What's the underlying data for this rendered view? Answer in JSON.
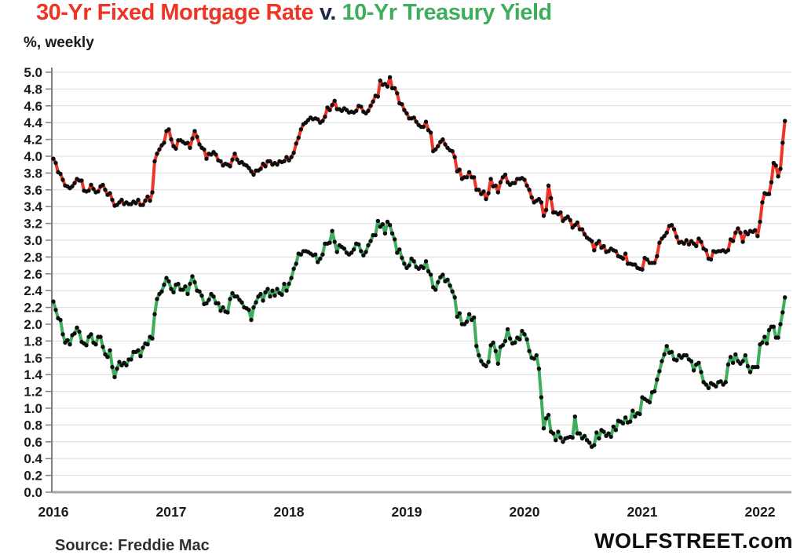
{
  "title": {
    "part_red": "30-Yr Fixed Mortgage Rate",
    "sep": " v. ",
    "part_green": "10-Yr Treasury Yield"
  },
  "subtitle": "%, weekly",
  "footer": {
    "source": "Source: Freddie Mac",
    "brand": "WOLFSTREET.com"
  },
  "colors": {
    "mortgage_red": "#EE3425",
    "treasury_green": "#3EAE5C",
    "title_sep": "#1b2a4a",
    "dot": "#0d0d0d",
    "grid": "#dcdcdc",
    "axis": "#8c8c8c",
    "baseline": "#a6a6a6",
    "label_text": "#1a1a1a"
  },
  "chart_data": {
    "type": "line",
    "title": "30-Yr Fixed Mortgage Rate v. 10-Yr Treasury Yield",
    "ylabel": "%, weekly",
    "xlabel": "",
    "ylim": [
      0.0,
      5.0
    ],
    "ytick_step": 0.2,
    "x_ticks": [
      2016,
      2017,
      2018,
      2019,
      2020,
      2021,
      2022
    ],
    "grid": true,
    "legend_position": "none",
    "marker": "dot",
    "partial_year_divisor": 52,
    "series": [
      {
        "name": "30-Yr Fixed Mortgage Rate",
        "color": "#EE3425",
        "data_by_year": {
          "2016": [
            3.97,
            3.92,
            3.81,
            3.79,
            3.72,
            3.65,
            3.64,
            3.62,
            3.64,
            3.68,
            3.73,
            3.71,
            3.71,
            3.59,
            3.58,
            3.59,
            3.66,
            3.61,
            3.57,
            3.58,
            3.64,
            3.66,
            3.6,
            3.54,
            3.56,
            3.48,
            3.41,
            3.42,
            3.45,
            3.48,
            3.43,
            3.45,
            3.43,
            3.43,
            3.46,
            3.44,
            3.48,
            3.42,
            3.42,
            3.47,
            3.52,
            3.47,
            3.57,
            3.94,
            4.03,
            4.08,
            4.13,
            4.16,
            4.3,
            4.32
          ],
          "2017": [
            4.2,
            4.12,
            4.09,
            4.19,
            4.19,
            4.17,
            4.15,
            4.16,
            4.1,
            4.21,
            4.3,
            4.23,
            4.14,
            4.1,
            4.08,
            3.97,
            4.03,
            4.02,
            4.05,
            4.02,
            3.95,
            3.94,
            3.89,
            3.91,
            3.9,
            3.88,
            3.96,
            4.03,
            3.96,
            3.92,
            3.93,
            3.9,
            3.89,
            3.86,
            3.82,
            3.78,
            3.83,
            3.83,
            3.85,
            3.91,
            3.88,
            3.94,
            3.94,
            3.9,
            3.92,
            3.9,
            3.94,
            3.93,
            3.94,
            3.99
          ],
          "2018": [
            3.95,
            3.99,
            4.04,
            4.15,
            4.22,
            4.32,
            4.38,
            4.4,
            4.43,
            4.46,
            4.44,
            4.45,
            4.44,
            4.4,
            4.42,
            4.47,
            4.58,
            4.55,
            4.61,
            4.66,
            4.56,
            4.56,
            4.54,
            4.57,
            4.55,
            4.52,
            4.53,
            4.52,
            4.54,
            4.6,
            4.59,
            4.53,
            4.51,
            4.54,
            4.6,
            4.65,
            4.72,
            4.71,
            4.9,
            4.85,
            4.86,
            4.83,
            4.94,
            4.81,
            4.81,
            4.75,
            4.63,
            4.62,
            4.55
          ],
          "2019": [
            4.51,
            4.45,
            4.45,
            4.46,
            4.41,
            4.37,
            4.35,
            4.35,
            4.41,
            4.31,
            4.28,
            4.06,
            4.08,
            4.12,
            4.17,
            4.2,
            4.14,
            4.1,
            4.07,
            4.06,
            3.99,
            3.82,
            3.84,
            3.73,
            3.75,
            3.75,
            3.81,
            3.75,
            3.75,
            3.6,
            3.6,
            3.55,
            3.58,
            3.49,
            3.56,
            3.73,
            3.64,
            3.65,
            3.57,
            3.69,
            3.75,
            3.78,
            3.69,
            3.66,
            3.68,
            3.68,
            3.73,
            3.73,
            3.74
          ],
          "2020": [
            3.72,
            3.65,
            3.6,
            3.51,
            3.45,
            3.47,
            3.49,
            3.45,
            3.29,
            3.36,
            3.65,
            3.5,
            3.33,
            3.33,
            3.31,
            3.33,
            3.23,
            3.26,
            3.28,
            3.24,
            3.15,
            3.18,
            3.21,
            3.13,
            3.13,
            3.07,
            3.03,
            3.01,
            2.99,
            2.88,
            2.96,
            2.99,
            2.91,
            2.93,
            2.86,
            2.87,
            2.9,
            2.88,
            2.87,
            2.81,
            2.8,
            2.78,
            2.84,
            2.72,
            2.72,
            2.71,
            2.71,
            2.67,
            2.66
          ],
          "2021": [
            2.65,
            2.79,
            2.77,
            2.73,
            2.73,
            2.73,
            2.81,
            2.97,
            3.02,
            3.05,
            3.09,
            3.17,
            3.18,
            3.13,
            3.04,
            2.97,
            2.98,
            2.96,
            3.0,
            2.95,
            2.99,
            2.96,
            2.93,
            3.02,
            2.98,
            2.9,
            2.88,
            2.78,
            2.77,
            2.87,
            2.86,
            2.87,
            2.87,
            2.88,
            2.86,
            2.88,
            3.01,
            2.99,
            3.09,
            3.14,
            3.09,
            2.98,
            3.1,
            3.07,
            3.11,
            3.1,
            3.12,
            3.05
          ],
          "2022": [
            3.22,
            3.45,
            3.56,
            3.55,
            3.55,
            3.69,
            3.92,
            3.89,
            3.76,
            3.85,
            4.16,
            4.42
          ]
        }
      },
      {
        "name": "10-Yr Treasury Yield",
        "color": "#3EAE5C",
        "data_by_year": {
          "2016": [
            2.27,
            2.17,
            2.07,
            2.05,
            1.88,
            1.78,
            1.81,
            1.76,
            1.87,
            1.89,
            1.96,
            1.91,
            1.79,
            1.77,
            1.75,
            1.85,
            1.88,
            1.78,
            1.76,
            1.85,
            1.85,
            1.73,
            1.64,
            1.61,
            1.69,
            1.49,
            1.37,
            1.47,
            1.55,
            1.51,
            1.54,
            1.51,
            1.58,
            1.58,
            1.67,
            1.67,
            1.69,
            1.62,
            1.72,
            1.77,
            1.76,
            1.85,
            1.83,
            2.12,
            2.3,
            2.36,
            2.39,
            2.47,
            2.55,
            2.51
          ],
          "2017": [
            2.42,
            2.38,
            2.47,
            2.48,
            2.41,
            2.41,
            2.45,
            2.36,
            2.48,
            2.57,
            2.5,
            2.4,
            2.39,
            2.34,
            2.24,
            2.25,
            2.29,
            2.36,
            2.33,
            2.25,
            2.25,
            2.16,
            2.2,
            2.15,
            2.14,
            2.3,
            2.37,
            2.33,
            2.33,
            2.29,
            2.26,
            2.2,
            2.19,
            2.17,
            2.05,
            2.2,
            2.26,
            2.33,
            2.36,
            2.28,
            2.38,
            2.42,
            2.33,
            2.4,
            2.34,
            2.42,
            2.37,
            2.35,
            2.48,
            2.4
          ],
          "2018": [
            2.48,
            2.55,
            2.66,
            2.72,
            2.84,
            2.83,
            2.87,
            2.87,
            2.86,
            2.84,
            2.82,
            2.83,
            2.74,
            2.78,
            2.83,
            2.96,
            2.96,
            2.97,
            3.11,
            2.98,
            2.86,
            2.94,
            2.92,
            2.9,
            2.85,
            2.83,
            2.85,
            2.89,
            2.96,
            2.95,
            2.87,
            2.82,
            2.86,
            2.94,
            2.99,
            3.06,
            3.06,
            3.23,
            3.16,
            3.19,
            3.08,
            3.22,
            3.18,
            3.08,
            3.01,
            2.85,
            2.89,
            2.79,
            2.72
          ],
          "2019": [
            2.67,
            2.7,
            2.78,
            2.75,
            2.68,
            2.66,
            2.69,
            2.67,
            2.75,
            2.63,
            2.59,
            2.44,
            2.41,
            2.5,
            2.56,
            2.59,
            2.51,
            2.53,
            2.46,
            2.39,
            2.32,
            2.09,
            2.13,
            2.0,
            2.0,
            2.03,
            2.12,
            2.05,
            2.08,
            1.74,
            1.63,
            1.56,
            1.52,
            1.5,
            1.55,
            1.75,
            1.78,
            1.68,
            1.53,
            1.73,
            1.75,
            1.8,
            1.94,
            1.83,
            1.77,
            1.78,
            1.84,
            1.82,
            1.92
          ],
          "2020": [
            1.88,
            1.82,
            1.68,
            1.6,
            1.59,
            1.63,
            1.47,
            1.13,
            0.76,
            0.88,
            0.92,
            0.72,
            0.7,
            0.62,
            0.72,
            0.65,
            0.6,
            0.64,
            0.65,
            0.66,
            0.65,
            0.9,
            0.7,
            0.7,
            0.64,
            0.67,
            0.62,
            0.59,
            0.54,
            0.56,
            0.71,
            0.64,
            0.74,
            0.72,
            0.67,
            0.7,
            0.66,
            0.78,
            0.74,
            0.85,
            0.84,
            0.82,
            0.89,
            0.83,
            0.84,
            0.97,
            0.9,
            0.94,
            0.93
          ],
          "2021": [
            1.13,
            1.11,
            1.09,
            1.07,
            1.19,
            1.2,
            1.34,
            1.44,
            1.56,
            1.64,
            1.74,
            1.66,
            1.67,
            1.58,
            1.57,
            1.63,
            1.6,
            1.63,
            1.63,
            1.58,
            1.56,
            1.45,
            1.52,
            1.54,
            1.43,
            1.31,
            1.28,
            1.24,
            1.3,
            1.28,
            1.26,
            1.31,
            1.32,
            1.28,
            1.31,
            1.52,
            1.61,
            1.54,
            1.64,
            1.56,
            1.53,
            1.56,
            1.63,
            1.5,
            1.43,
            1.49,
            1.49,
            1.49
          ],
          "2022": [
            1.76,
            1.78,
            1.85,
            1.77,
            1.93,
            1.97,
            1.97,
            1.84,
            1.84,
            2.0,
            2.14,
            2.32
          ]
        }
      }
    ]
  }
}
